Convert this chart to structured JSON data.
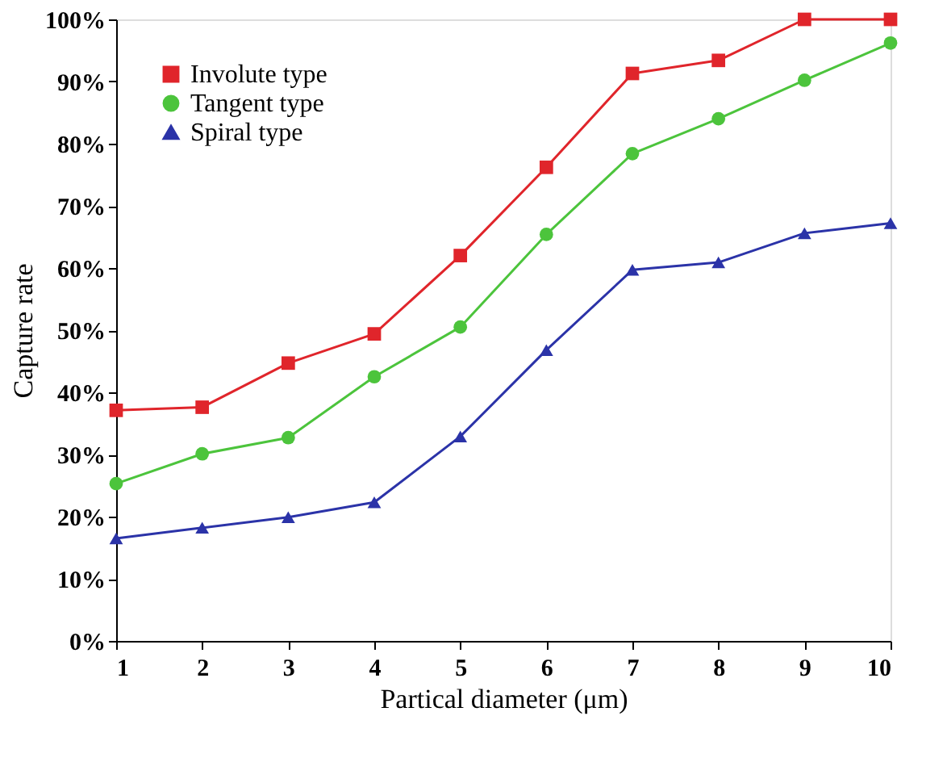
{
  "chart_data": {
    "type": "line",
    "xlabel": "Partical diameter (μm)",
    "ylabel": "Capture rate",
    "x": [
      1,
      2,
      3,
      4,
      5,
      6,
      7,
      8,
      9,
      10
    ],
    "series": [
      {
        "name": "Involute type",
        "color": "#e0252b",
        "marker": "square",
        "values": [
          37.1,
          37.6,
          44.7,
          49.4,
          62.0,
          76.2,
          91.3,
          93.4,
          100,
          100
        ]
      },
      {
        "name": "Tangent type",
        "color": "#4cc43c",
        "marker": "circle",
        "values": [
          25.3,
          30.1,
          32.7,
          42.5,
          50.5,
          65.4,
          78.4,
          84.0,
          90.2,
          96.2
        ]
      },
      {
        "name": "Spiral type",
        "color": "#2b33a8",
        "marker": "triangle",
        "values": [
          16.5,
          18.2,
          19.9,
          22.3,
          32.9,
          46.8,
          59.7,
          60.9,
          65.6,
          67.2
        ]
      }
    ],
    "xlim": [
      1,
      10
    ],
    "xticks": [
      1,
      2,
      3,
      4,
      5,
      6,
      7,
      8,
      9,
      10
    ],
    "ylim": [
      0,
      100
    ],
    "yticks": [
      {
        "value": 0,
        "label": "0%"
      },
      {
        "value": 10,
        "label": "10%"
      },
      {
        "value": 20,
        "label": "20%"
      },
      {
        "value": 30,
        "label": "30%"
      },
      {
        "value": 40,
        "label": "40%"
      },
      {
        "value": 50,
        "label": "50%"
      },
      {
        "value": 60,
        "label": "60%"
      },
      {
        "value": 70,
        "label": "70%"
      },
      {
        "value": 80,
        "label": "80%"
      },
      {
        "value": 90,
        "label": "90%"
      },
      {
        "value": 100,
        "label": "100%"
      }
    ],
    "grid": false,
    "legend": "top left",
    "line_style": "solid"
  }
}
